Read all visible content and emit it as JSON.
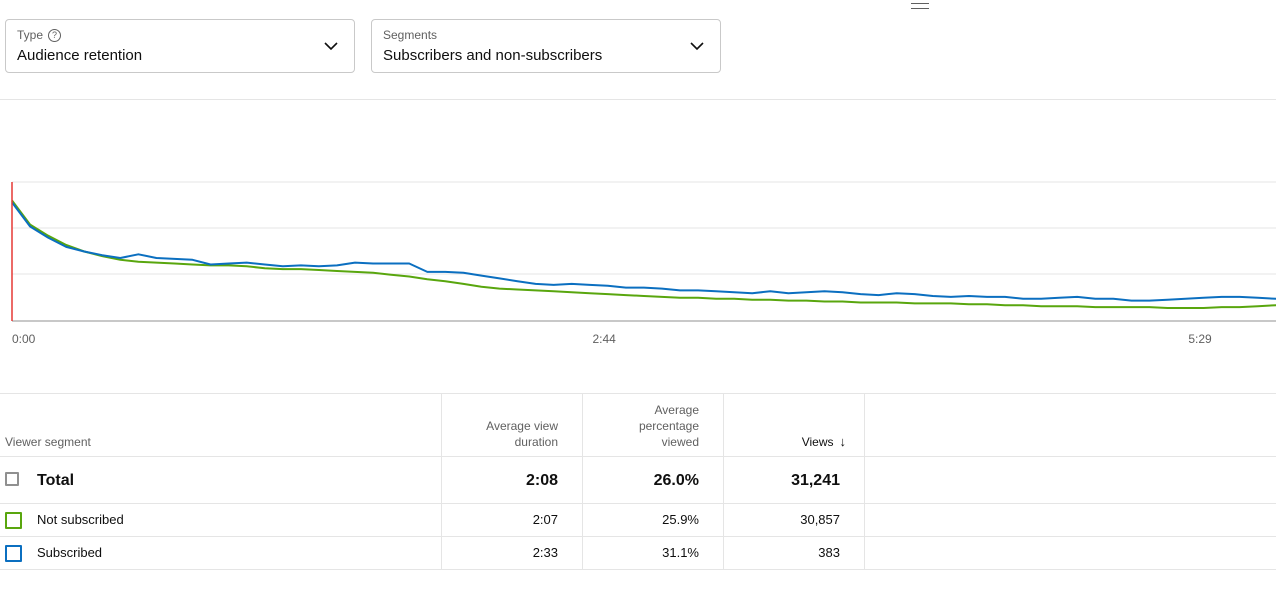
{
  "filters": {
    "type": {
      "label": "Type",
      "value": "Audience retention"
    },
    "segments": {
      "label": "Segments",
      "value": "Subscribers and non-subscribers"
    }
  },
  "chart_data": {
    "type": "line",
    "x_ticks": [
      "0:00",
      "2:44",
      "5:29"
    ],
    "x_seconds": [
      0,
      5,
      10,
      15,
      20,
      25,
      30,
      35,
      40,
      45,
      50,
      55,
      60,
      65,
      70,
      75,
      80,
      85,
      90,
      95,
      100,
      105,
      110,
      115,
      120,
      125,
      130,
      135,
      140,
      145,
      150,
      155,
      160,
      165,
      170,
      175,
      180,
      185,
      190,
      195,
      200,
      205,
      210,
      215,
      220,
      225,
      230,
      235,
      240,
      245,
      250,
      255,
      260,
      265,
      270,
      275,
      280,
      285,
      290,
      295,
      300,
      305,
      310,
      315,
      320,
      325,
      330,
      335,
      340,
      345,
      350,
      355
    ],
    "x_max_seconds": 357,
    "ylim": [
      0,
      150
    ],
    "colors": {
      "not_subscribed": "#59a60e",
      "subscribed": "#0b6fc0",
      "playhead": "#e53935"
    },
    "series": [
      {
        "name": "Not subscribed",
        "color": "#59a60e",
        "values": [
          130,
          104,
          92,
          82,
          75,
          70,
          66,
          64,
          63,
          62,
          61,
          60,
          60,
          59,
          57,
          56,
          56,
          55,
          54,
          53,
          52,
          50,
          48,
          45,
          43,
          40,
          37,
          35,
          34,
          33,
          32,
          31,
          30,
          29,
          28,
          27,
          26,
          25,
          25,
          24,
          24,
          23,
          23,
          22,
          22,
          21,
          21,
          20,
          20,
          20,
          19,
          19,
          19,
          18,
          18,
          17,
          17,
          16,
          16,
          16,
          15,
          15,
          15,
          15,
          14,
          14,
          14,
          15,
          15,
          16,
          17,
          17
        ]
      },
      {
        "name": "Subscribed",
        "color": "#0b6fc0",
        "values": [
          128,
          102,
          90,
          80,
          75,
          71,
          68,
          72,
          68,
          67,
          66,
          61,
          62,
          63,
          61,
          59,
          60,
          59,
          60,
          63,
          62,
          62,
          62,
          53,
          53,
          52,
          49,
          46,
          43,
          40,
          39,
          40,
          39,
          38,
          36,
          36,
          35,
          33,
          33,
          32,
          31,
          30,
          32,
          30,
          31,
          32,
          31,
          29,
          28,
          30,
          29,
          27,
          26,
          27,
          26,
          26,
          24,
          24,
          25,
          26,
          24,
          24,
          22,
          22,
          23,
          24,
          25,
          26,
          26,
          25,
          24,
          24
        ]
      }
    ]
  },
  "table": {
    "headers": {
      "segment": "Viewer segment",
      "avg_view_duration": [
        "Average view",
        "duration"
      ],
      "avg_pct_viewed": [
        "Average",
        "percentage",
        "viewed"
      ],
      "views": "Views"
    },
    "rows": [
      {
        "segment": "Total",
        "avg_view_duration": "2:08",
        "avg_pct_viewed": "26.0%",
        "views": "31,241",
        "checkbox_color": "#909090"
      },
      {
        "segment": "Not subscribed",
        "avg_view_duration": "2:07",
        "avg_pct_viewed": "25.9%",
        "views": "30,857",
        "checkbox_color": "#59a60e"
      },
      {
        "segment": "Subscribed",
        "avg_view_duration": "2:33",
        "avg_pct_viewed": "31.1%",
        "views": "383",
        "checkbox_color": "#0b6fc0"
      }
    ]
  },
  "icons": {
    "menu": "menu-icon",
    "help": "help-icon",
    "chevron": "chevron-down-icon",
    "sort": "arrow-down-icon"
  }
}
